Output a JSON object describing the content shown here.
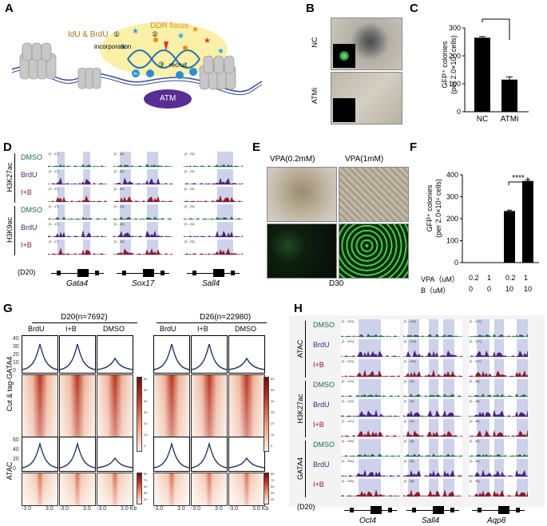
{
  "panels": {
    "A": "A",
    "B": "B",
    "C": "C",
    "D": "D",
    "E": "E",
    "F": "F",
    "G": "G",
    "H": "H"
  },
  "A": {
    "idu_brdu": "IdU & BrdU",
    "ddr": "DDR focus",
    "incorporation": "incorporation",
    "recruit": "recruit",
    "atm": "ATM",
    "step1": "①",
    "step2": "②",
    "step3": "③",
    "ac": "Ac"
  },
  "B": {
    "nc": "NC",
    "atmi": "ATMi"
  },
  "C": {
    "ylabel": "GFP⁺ colonies\n(per 2.0×10⁴ cells)",
    "sig": "**",
    "yticks": [
      "0",
      "100",
      "200",
      "300"
    ],
    "chart_data": {
      "type": "bar",
      "categories": [
        "NC",
        "ATMi"
      ],
      "values": [
        265,
        115
      ],
      "errors": [
        4,
        10
      ],
      "ylim": [
        0,
        300
      ],
      "title": "",
      "xlabel": "",
      "ylabel": "GFP⁺ colonies (per 2.0×10⁴ cells)"
    }
  },
  "D": {
    "marks": [
      "H3K27ac",
      "H3K9ac"
    ],
    "rows": [
      "DMSO",
      "BrdU",
      "I+B",
      "DMSO",
      "BrdU",
      "I+B"
    ],
    "ranges": [
      [
        "[0 - 47]",
        "[0 - 40]",
        "[0 - 25]"
      ],
      [
        "[0 - 47]",
        "[0 - 40]",
        "[0 - 25]"
      ],
      [
        "[0 - 47]",
        "[0 - 40]",
        "[0 - 25]"
      ],
      [
        "[0 - 47]",
        "[0 - 43]",
        "[0 - 25]"
      ],
      [
        "[0 - 47]",
        "[0 - 43]",
        "[0 - 25]"
      ],
      [
        "[0 - 47]",
        "[0 - 43]",
        "[0 - 25]"
      ]
    ],
    "stage": "(D20)",
    "genes": [
      "Gata4",
      "Sox17",
      "Sall4"
    ]
  },
  "E": {
    "vpa1": "VPA(0.2mM)",
    "vpa2": "VPA(1mM)",
    "day": "D30"
  },
  "F": {
    "ylabel": "GFP⁺ colonies\n(per 2.0×10⁴ cells)",
    "sig": "****",
    "yticks": [
      "0",
      "100",
      "200",
      "300",
      "400"
    ],
    "row1_label": "VPA（uM）",
    "row2_label": "B（uM）",
    "row1": [
      "0.2",
      "1",
      "0.2",
      "1"
    ],
    "row2": [
      "0",
      "0",
      "10",
      "10"
    ],
    "chart_data": {
      "type": "bar",
      "categories": [
        "0.2/0",
        "1/0",
        "0.2/10",
        "1/10"
      ],
      "values": [
        0,
        0,
        235,
        372
      ],
      "errors": [
        0,
        0,
        4,
        6
      ],
      "ylim": [
        0,
        400
      ],
      "title": "",
      "xlabel": "",
      "ylabel": "GFP⁺ colonies (per 2.0×10⁴ cells)"
    }
  },
  "G": {
    "d20": "D20(n=7692)",
    "d26": "D26(n=22980)",
    "cols": [
      "BrdU",
      "I+B",
      "DMSO",
      "BrdU",
      "I+B",
      "DMSO"
    ],
    "row1": "Cut & tag-GATA4",
    "row2": "ATAC",
    "y1": [
      "40",
      "30",
      "20",
      "10",
      "0"
    ],
    "y2": [
      "60",
      "40",
      "20",
      "0"
    ],
    "x": [
      "-3.0",
      "3.0",
      "3.0",
      "3.0 Kb"
    ],
    "cb1": [
      "60",
      "50",
      "40",
      "30",
      "20",
      "10",
      "0"
    ],
    "cb2": [
      "80",
      "70",
      "60",
      "50",
      "40",
      "30",
      "20",
      "10",
      "0"
    ]
  },
  "H": {
    "marks": [
      "ATAC",
      "H3K27ac",
      "GATA4"
    ],
    "rows": [
      "DMSO",
      "BrdU",
      "I+B",
      "DMSO",
      "BrdU",
      "I+B",
      "DMSO",
      "BrdU",
      "I+B"
    ],
    "ranges": [
      [
        "[0 - 333]",
        "[0 - 105]",
        "[0 - 127]"
      ],
      [
        "[0 - 333]",
        "[0 - 105]",
        "[0 - 127]"
      ],
      [
        "[0 - 333]",
        "[0 - 105]",
        "[0 - 127]"
      ],
      [
        "[0 - 120]",
        "[0 - 42]",
        "[0 - 38]"
      ],
      [
        "[0 - 120]",
        "[0 - 42]",
        "[0 - 38]"
      ],
      [
        "[0 - 120]",
        "[0 - 42]",
        "[0 - 38]"
      ],
      [
        "[0 - 298]",
        "[0 - 36]",
        "[0 - 32]"
      ],
      [
        "[0 - 298]",
        "[0 - 36]",
        "[0 - 32]"
      ],
      [
        "[0 - 298]",
        "[0 - 36]",
        "[0 - 32]"
      ]
    ],
    "stage": "(D20)",
    "genes": [
      "Oct4",
      "Sall4",
      "Aqp8"
    ]
  },
  "colors": {
    "dmso": "#1e6b3e",
    "brdu": "#4a2478",
    "ib": "#8b1a2a",
    "band": "#c5c9e6"
  }
}
